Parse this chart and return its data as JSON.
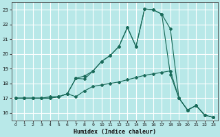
{
  "xlabel": "Humidex (Indice chaleur)",
  "bg_color": "#b8e8e8",
  "grid_color": "#ffffff",
  "line_color": "#1a6b5a",
  "xlim": [
    -0.5,
    23.5
  ],
  "ylim": [
    15.5,
    23.5
  ],
  "yticks": [
    16,
    17,
    18,
    19,
    20,
    21,
    22,
    23
  ],
  "xticks": [
    0,
    1,
    2,
    3,
    4,
    5,
    6,
    7,
    8,
    9,
    10,
    11,
    12,
    13,
    14,
    15,
    16,
    17,
    18,
    19,
    20,
    21,
    22,
    23
  ],
  "line1_x": [
    0,
    1,
    2,
    3,
    4,
    5,
    6,
    7,
    8,
    9,
    10,
    11,
    12,
    13,
    14,
    15,
    16,
    17,
    18,
    19,
    20,
    21,
    22,
    23
  ],
  "line1_y": [
    17.0,
    17.0,
    17.0,
    17.0,
    17.0,
    17.1,
    17.3,
    18.35,
    18.3,
    18.85,
    19.5,
    19.9,
    20.5,
    21.8,
    20.5,
    23.05,
    23.0,
    22.7,
    18.6,
    17.0,
    16.2,
    16.5,
    15.85,
    15.7
  ],
  "line2_x": [
    0,
    1,
    2,
    3,
    4,
    5,
    6,
    7,
    8,
    9,
    10,
    11,
    12,
    13,
    14,
    15,
    16,
    17,
    18,
    19,
    20,
    21,
    22,
    23
  ],
  "line2_y": [
    17.0,
    17.0,
    17.0,
    17.0,
    17.0,
    17.1,
    17.3,
    18.35,
    18.5,
    18.85,
    19.5,
    19.9,
    20.5,
    21.8,
    20.5,
    23.05,
    23.0,
    22.7,
    21.7,
    17.0,
    16.2,
    16.5,
    15.85,
    15.7
  ],
  "line3_x": [
    0,
    1,
    2,
    3,
    4,
    5,
    6,
    7,
    8,
    9,
    10,
    11,
    12,
    13,
    14,
    15,
    16,
    17,
    18,
    19,
    20,
    21,
    22,
    23
  ],
  "line3_y": [
    17.0,
    17.0,
    17.0,
    17.0,
    17.1,
    17.1,
    17.3,
    17.1,
    17.5,
    17.8,
    17.9,
    18.0,
    18.1,
    18.25,
    18.4,
    18.55,
    18.65,
    18.75,
    18.85,
    17.0,
    16.2,
    16.5,
    15.85,
    15.7
  ]
}
